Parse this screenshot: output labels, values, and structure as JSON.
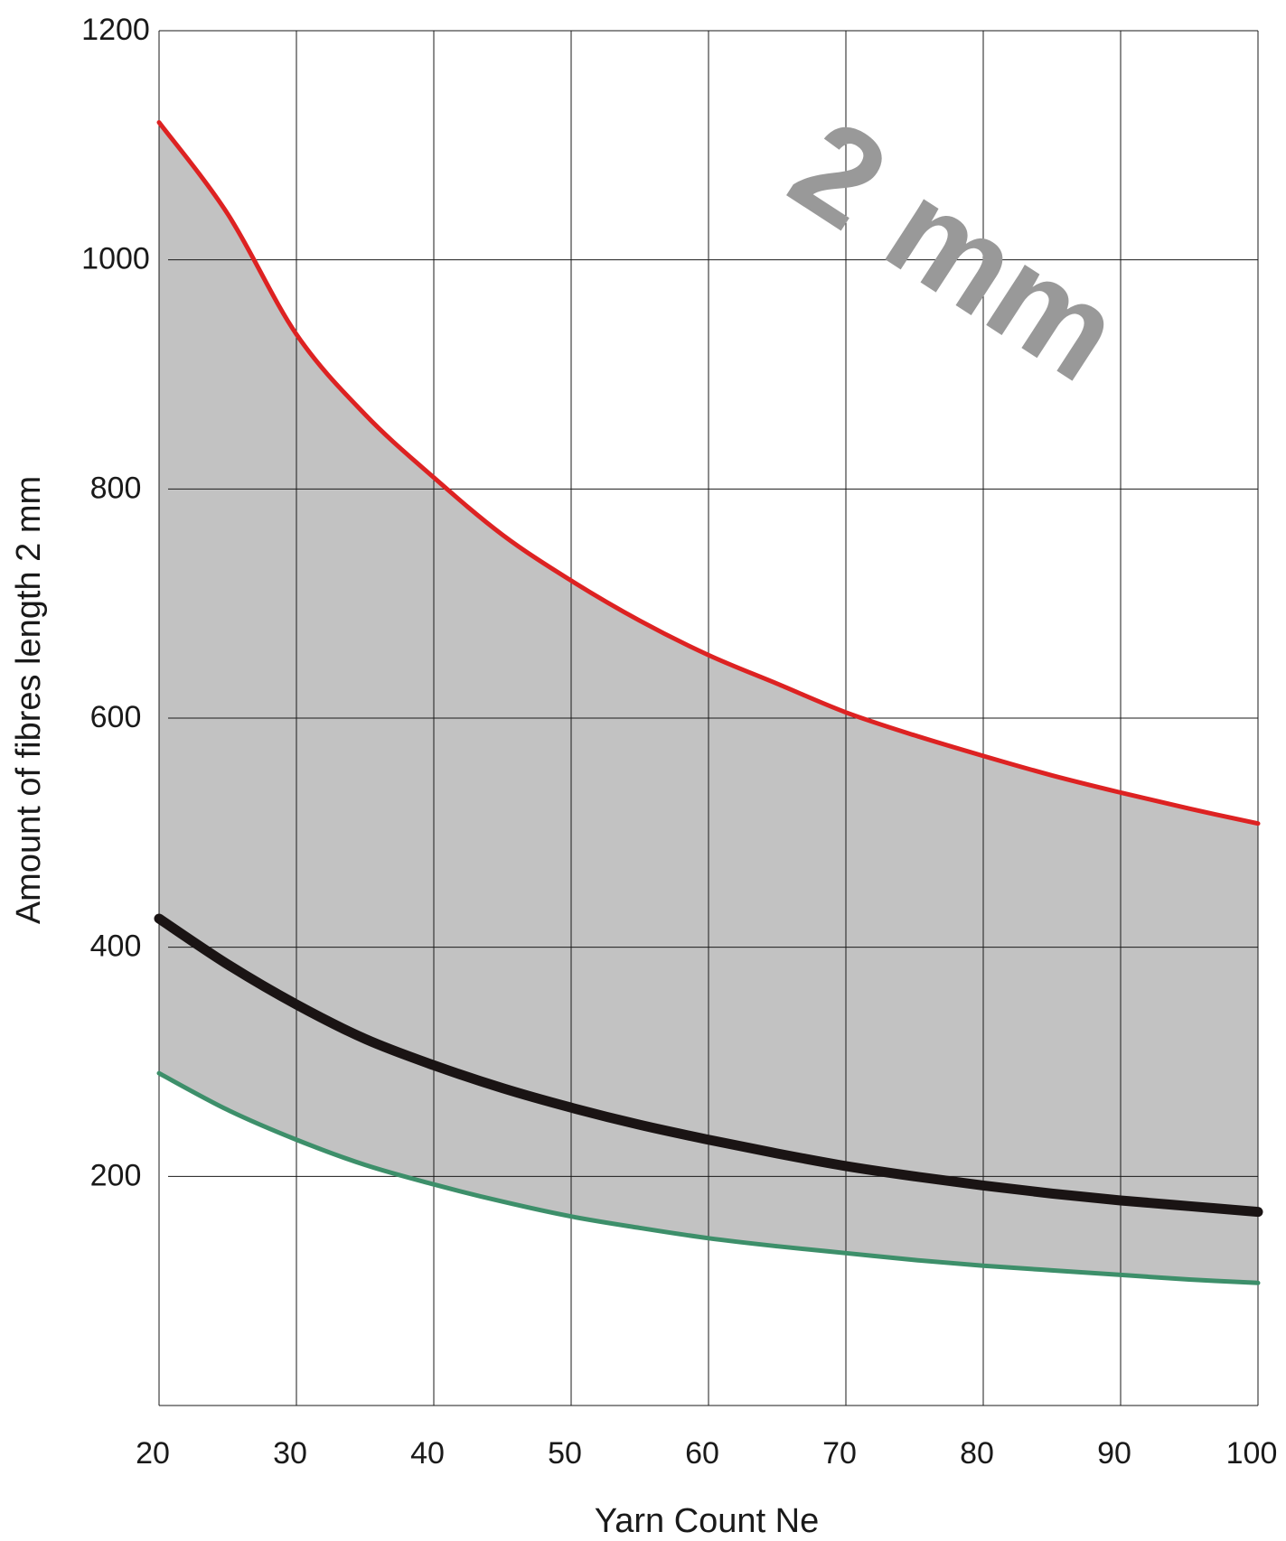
{
  "chart_data": {
    "type": "line",
    "title": "",
    "annotation": "2 mm",
    "xlabel": "Yarn Count Ne",
    "ylabel": "Amount of fibres length 2 mm",
    "xlim": [
      20,
      100
    ],
    "ylim": [
      0,
      1200
    ],
    "x_ticks": [
      20,
      30,
      40,
      50,
      60,
      70,
      80,
      90,
      100
    ],
    "y_ticks": [
      200,
      400,
      600,
      800,
      1000,
      1200
    ],
    "grid": true,
    "legend": "none",
    "x": [
      20,
      25,
      30,
      35,
      40,
      45,
      50,
      55,
      60,
      65,
      70,
      75,
      80,
      85,
      90,
      95,
      100
    ],
    "series": [
      {
        "key": "upper",
        "color": "#dd2222",
        "values": [
          1120,
          1040,
          935,
          865,
          810,
          760,
          720,
          685,
          655,
          630,
          605,
          585,
          567,
          550,
          535,
          521,
          508
        ]
      },
      {
        "key": "mean",
        "color": "#1a1414",
        "values": [
          425,
          385,
          350,
          320,
          297,
          277,
          260,
          245,
          232,
          220,
          209,
          200,
          192,
          185,
          179,
          174,
          169
        ]
      },
      {
        "key": "lower",
        "color": "#3d8f6a",
        "values": [
          290,
          258,
          232,
          210,
          193,
          178,
          165,
          155,
          146,
          139,
          133,
          127,
          122,
          118,
          114,
          110,
          107
        ]
      }
    ],
    "band": {
      "upper_series": "upper",
      "lower_series": "lower",
      "color": "#c2c2c2"
    }
  }
}
